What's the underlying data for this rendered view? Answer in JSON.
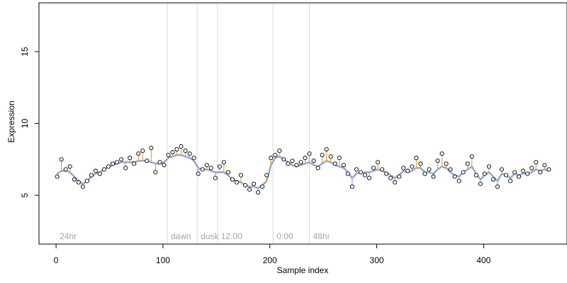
{
  "chart_data": {
    "type": "scatter",
    "xlabel": "Sample index",
    "ylabel": "Expression",
    "xlim": [
      -16,
      478
    ],
    "ylim": [
      1.6,
      18.4
    ],
    "xticks": [
      0,
      100,
      200,
      300,
      400
    ],
    "yticks": [
      5,
      10,
      15
    ],
    "grid": false,
    "colors": {
      "points_fill": "#ffffff",
      "points_stroke": "#000000",
      "fit_line": "#8ea9d8",
      "residual_positive": "#f0a030",
      "residual_negative": "#8ea9d8",
      "dividers": "#d9d9d9",
      "region_label": "#a6a6a6"
    },
    "regions": [
      {
        "label": "24hr",
        "x": 0
      },
      {
        "label": "dawn",
        "x": 104
      },
      {
        "label": "dusk",
        "x": 132
      },
      {
        "label": "12:00",
        "x": 151
      },
      {
        "label": "0:00",
        "x": 203
      },
      {
        "label": "48hr",
        "x": 237
      }
    ],
    "series": [
      {
        "x": [
          1,
          5,
          9,
          13,
          17,
          21,
          25,
          29,
          33,
          37,
          41,
          45,
          49,
          53,
          57,
          61,
          65,
          69,
          73,
          77,
          81,
          85,
          89,
          93,
          97,
          101,
          105,
          109,
          113,
          117,
          121,
          125,
          129,
          133,
          137,
          141,
          145,
          149,
          153,
          157,
          161,
          165,
          169,
          173,
          177,
          181,
          185,
          189,
          193,
          197,
          201,
          205,
          209,
          213,
          217,
          221,
          225,
          229,
          233,
          237,
          241,
          245,
          249,
          253,
          257,
          261,
          265,
          269,
          273,
          277,
          281,
          285,
          289,
          293,
          297,
          301,
          305,
          309,
          313,
          317,
          321,
          325,
          329,
          333,
          337,
          341,
          345,
          349,
          353,
          357,
          361,
          365,
          369,
          373,
          377,
          381,
          385,
          389,
          393,
          397,
          401,
          405,
          409,
          413,
          417,
          421,
          425,
          429,
          433,
          437,
          441,
          445,
          449,
          453,
          457,
          461
        ],
        "y": [
          6.3,
          7.5,
          6.8,
          7.0,
          6.1,
          5.9,
          5.6,
          6.0,
          6.4,
          6.7,
          6.5,
          6.8,
          7.0,
          7.2,
          7.3,
          7.5,
          6.9,
          7.6,
          7.2,
          7.9,
          8.1,
          7.4,
          8.3,
          6.6,
          7.3,
          7.1,
          7.8,
          8.0,
          8.2,
          8.4,
          8.1,
          7.9,
          7.6,
          6.5,
          6.8,
          7.1,
          6.9,
          6.2,
          7.0,
          7.3,
          6.6,
          6.1,
          5.9,
          6.4,
          5.7,
          5.4,
          5.8,
          5.2,
          5.6,
          6.4,
          7.6,
          7.8,
          8.1,
          7.5,
          7.2,
          7.4,
          7.1,
          7.3,
          7.6,
          7.9,
          7.4,
          6.9,
          7.8,
          8.2,
          7.7,
          7.2,
          7.6,
          7.1,
          6.5,
          5.6,
          6.8,
          6.6,
          6.4,
          6.2,
          6.9,
          7.3,
          6.8,
          6.5,
          6.2,
          5.9,
          6.3,
          6.9,
          6.7,
          7.0,
          7.6,
          7.2,
          6.5,
          6.8,
          6.3,
          7.4,
          7.9,
          7.2,
          6.8,
          6.3,
          6.0,
          6.6,
          7.2,
          7.7,
          6.4,
          5.8,
          6.5,
          7.0,
          6.1,
          5.6,
          6.8,
          6.4,
          6.0,
          6.6,
          6.3,
          6.7,
          6.5,
          6.9,
          7.3,
          6.6,
          7.1,
          6.8
        ],
        "fit": [
          6.5,
          6.7,
          6.7,
          6.6,
          6.3,
          6.0,
          5.8,
          6.0,
          6.3,
          6.5,
          6.6,
          6.8,
          7.0,
          7.1,
          7.2,
          7.3,
          7.3,
          7.3,
          7.3,
          7.4,
          7.4,
          7.4,
          7.3,
          7.2,
          7.2,
          7.3,
          7.6,
          7.7,
          7.8,
          7.8,
          7.7,
          7.6,
          7.4,
          6.9,
          6.8,
          6.8,
          6.7,
          6.6,
          6.6,
          6.6,
          6.4,
          6.1,
          6.0,
          5.9,
          5.7,
          5.6,
          5.6,
          5.5,
          5.7,
          6.0,
          7.1,
          7.6,
          7.7,
          7.5,
          7.3,
          7.1,
          7.0,
          7.1,
          7.2,
          7.3,
          7.1,
          7.0,
          7.2,
          7.4,
          7.3,
          7.1,
          7.0,
          6.9,
          6.6,
          6.2,
          6.5,
          6.6,
          6.6,
          6.6,
          6.7,
          6.8,
          6.7,
          6.6,
          6.4,
          6.2,
          6.4,
          6.7,
          6.6,
          6.7,
          6.9,
          6.9,
          6.6,
          6.6,
          6.5,
          6.8,
          7.0,
          6.9,
          6.6,
          6.4,
          6.3,
          6.6,
          6.8,
          7.0,
          6.5,
          6.1,
          6.4,
          6.6,
          6.3,
          6.0,
          6.5,
          6.4,
          6.2,
          6.5,
          6.4,
          6.5,
          6.5,
          6.6,
          6.8,
          6.7,
          6.8,
          6.7
        ]
      }
    ]
  }
}
